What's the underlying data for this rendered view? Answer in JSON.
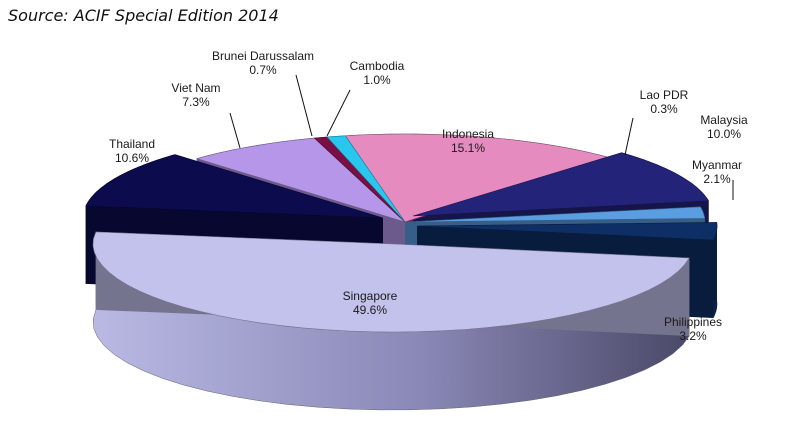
{
  "source_note": "Source: ACIF Special Edition 2014",
  "chart_data": {
    "type": "pie",
    "title": "",
    "slices": [
      {
        "label": "Indonesia",
        "value": 15.1,
        "display": "15.1%",
        "color": "#e58bc0"
      },
      {
        "label": "Lao PDR",
        "value": 0.3,
        "display": "0.3%",
        "color": "#c62fae"
      },
      {
        "label": "Malaysia",
        "value": 10.0,
        "display": "10.0%",
        "color": "#24237a"
      },
      {
        "label": "Myanmar",
        "value": 2.1,
        "display": "2.1%",
        "color": "#5a9de0"
      },
      {
        "label": "Philippines",
        "value": 3.2,
        "display": "3.2%",
        "color": "#0e2f66"
      },
      {
        "label": "Singapore",
        "value": 49.6,
        "display": "49.6%",
        "color": "#c2c2ec"
      },
      {
        "label": "Thailand",
        "value": 10.6,
        "display": "10.6%",
        "color": "#0b0b4e"
      },
      {
        "label": "Viet Nam",
        "value": 7.3,
        "display": "7.3%",
        "color": "#b696e9"
      },
      {
        "label": "Brunei Darussalam",
        "value": 0.7,
        "display": "0.7%",
        "color": "#7b0e44"
      },
      {
        "label": "Cambodia",
        "value": 1.0,
        "display": "1.0%",
        "color": "#29c6ee"
      }
    ],
    "style": "3d-exploded",
    "legend": "none"
  }
}
